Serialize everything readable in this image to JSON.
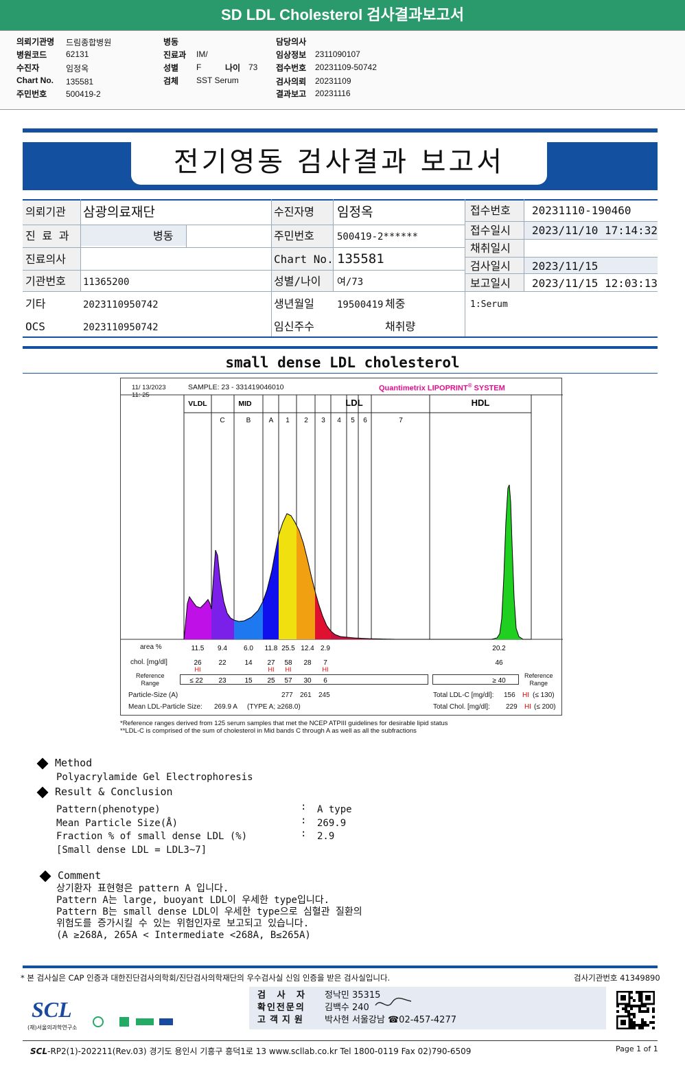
{
  "header": {
    "title": "SD LDL Cholesterol 검사결과보고서",
    "fields": [
      {
        "label": "의뢰기관명",
        "value": "드림종합병원"
      },
      {
        "label": "병원코드",
        "value": "62131"
      },
      {
        "label": "수진자",
        "value": "임정옥"
      },
      {
        "label": "Chart No.",
        "value": "135581"
      },
      {
        "label": "주민번호",
        "value": "500419-2"
      },
      {
        "label": "병동",
        "value": ""
      },
      {
        "label": "진료과",
        "value": "IM/"
      },
      {
        "label": "성별",
        "value": "F"
      },
      {
        "label": "나이",
        "value": "73"
      },
      {
        "label": "검체",
        "value": "SST Serum"
      },
      {
        "label": "담당의사",
        "value": ""
      },
      {
        "label": "임상정보",
        "value": "2311090107"
      },
      {
        "label": "접수번호",
        "value": "20231109-50742"
      },
      {
        "label": "검사의뢰",
        "value": "20231109"
      },
      {
        "label": "결과보고",
        "value": "20231116"
      }
    ]
  },
  "report": {
    "title": "전기영동 검사결과 보고서",
    "labels": {
      "institution": "의뢰기관",
      "dept": "진 료 과",
      "doctor": "진료의사",
      "inst_no": "기관번호",
      "etc": "기타",
      "ocs": "OCS",
      "patient": "수진자명",
      "rrn": "주민번호",
      "chart": "Chart No.",
      "sex_age": "성별/나이",
      "birth": "생년월일",
      "pregnancy": "임신주수",
      "receipt_no": "접수번호",
      "receipt_dt": "접수일시",
      "collect_dt": "채취일시",
      "test_dt": "검사일시",
      "report_dt": "보고일시",
      "weight": "체중",
      "collect_amt": "채취량"
    },
    "values": {
      "institution": "삼광의료재단",
      "dept": "병동",
      "doctor": "",
      "inst_no": "11365200",
      "etc": "2023110950742",
      "ocs": "2023110950742",
      "patient": "임정옥",
      "rrn": "500419-2******",
      "chart": "135581",
      "sex_age": "여/73",
      "birth": "19500419",
      "receipt_no": "20231110-190460",
      "receipt_dt": "2023/11/10 17:14:32",
      "collect_dt": "",
      "test_dt": "2023/11/15",
      "report_dt": "2023/11/15 12:03:13",
      "specimen": "1:Serum"
    }
  },
  "chart_section_title": "small dense LDL cholesterol",
  "chart_data": {
    "type": "area",
    "datetime": "11/ 13/2023\n11: 25",
    "date_line": "11/ 13/2023",
    "time_line": "11: 25",
    "sample": "SAMPLE:   23 - 331419046010",
    "system": "Quantimetrix LIPOPRINT",
    "system_mark": "®",
    "system_suffix": "SYSTEM",
    "groups": [
      "VLDL",
      "MID",
      "LDL",
      "HDL"
    ],
    "bands": [
      "C",
      "B",
      "A",
      "1",
      "2",
      "3",
      "4",
      "5",
      "6",
      "7"
    ],
    "row_labels": {
      "area": "area %",
      "chol": "chol. [mg/dl]",
      "ref": "Reference Range",
      "ref_line1": "Reference",
      "ref_line2": "Range"
    },
    "fractions": [
      {
        "name": "VLDL",
        "area": "11.5",
        "chol": "26",
        "hi": "HI",
        "ref": "≤ 22",
        "color": "#c010e8"
      },
      {
        "name": "C",
        "area": "9.4",
        "chol": "22",
        "hi": "",
        "ref": "23",
        "color": "#7a20e8"
      },
      {
        "name": "B",
        "area": "6.0",
        "chol": "14",
        "hi": "",
        "ref": "15",
        "color": "#1e78f0"
      },
      {
        "name": "A",
        "area": "11.8",
        "chol": "27",
        "hi": "HI",
        "ref": "25",
        "color": "#1010ee"
      },
      {
        "name": "1",
        "area": "25.5",
        "chol": "58",
        "hi": "HI",
        "ref": "57",
        "color": "#f0e010"
      },
      {
        "name": "2",
        "area": "12.4",
        "chol": "28",
        "hi": "",
        "ref": "30",
        "color": "#f0a010"
      },
      {
        "name": "3",
        "area": "2.9",
        "chol": "7",
        "hi": "HI",
        "ref": "6",
        "color": "#e01030"
      },
      {
        "name": "HDL",
        "area": "20.2",
        "chol": "46",
        "hi": "",
        "ref": "≥ 40",
        "color": "#20d020"
      }
    ],
    "particle_size_label": "Particle-Size (A)",
    "particle_sizes": [
      "277",
      "261",
      "245"
    ],
    "mean_size_label": "Mean LDL-Particle Size:",
    "mean_size": "269.9  A",
    "mean_size_type": "(TYPE A; ≥268.0)",
    "total_ldl_label": "Total LDL-C [mg/dl]:",
    "total_ldl": "156",
    "total_ldl_flag": "HI",
    "total_ldl_ref": "(≤ 130)",
    "total_chol_label": "Total Chol. [mg/dl]:",
    "total_chol": "229",
    "total_chol_flag": "HI",
    "total_chol_ref": "(≤ 200)"
  },
  "footnotes": {
    "line1": "*Reference ranges derived from 125 serum samples that met the NCEP ATPIII guidelines for desirable lipid status",
    "line2": "**LDL-C is comprised of the sum of cholesterol in Mid bands C through A as well as all the subfractions"
  },
  "method": {
    "heading": "Method",
    "text": "Polyacrylamide Gel Electrophoresis"
  },
  "result": {
    "heading": "Result & Conclusion",
    "rows": [
      {
        "label": "Pattern(phenotype)",
        "value": "A type"
      },
      {
        "label": "Mean Particle Size(Å)",
        "value": "269.9"
      },
      {
        "label": "Fraction % of small dense LDL (%)",
        "value": "2.9"
      }
    ],
    "note": "[Small dense LDL = LDL3~7]",
    "colon": ":"
  },
  "comment": {
    "heading": "Comment",
    "lines": [
      "상기환자 표현형은 pattern A 입니다.",
      "Pattern A는 large, buoyant LDL이 우세한 type입니다.",
      "Pattern B는 small dense LDL이 우세한 type으로 심혈관 질환의",
      "위험도를 증가시킬 수 있는 위험인자로 보고되고 있습니다.",
      "(A ≥268A, 265A < Intermediate <268A, B≤265A)"
    ]
  },
  "footer": {
    "certification": "* 본 검사실은 CAP 인증과 대한진단검사의학회/진단검사의학재단의 우수검사실 신임 인증을 받은 검사실입니다.",
    "inst_no_label": "검사기관번호",
    "inst_no": "41349890",
    "tester_label": "검 사 자",
    "tester": "정낙민 35315",
    "confirm_label": "확인전문의",
    "confirm": "김백수 240",
    "support_label": "고객지원",
    "support": "박사현 서울강남 ☎02-457-4277",
    "logo": "SCL",
    "logo_sub": "(재)서울의과학연구소",
    "bottom_logo": "SCL",
    "bottom_text": "-RP2(1)-202211(Rev.03)  경기도 용인시 기흥구 흥덕1로 13  www.scllab.co.kr  Tel 1800-0119   Fax 02)790-6509",
    "page": "Page 1 of 1"
  }
}
